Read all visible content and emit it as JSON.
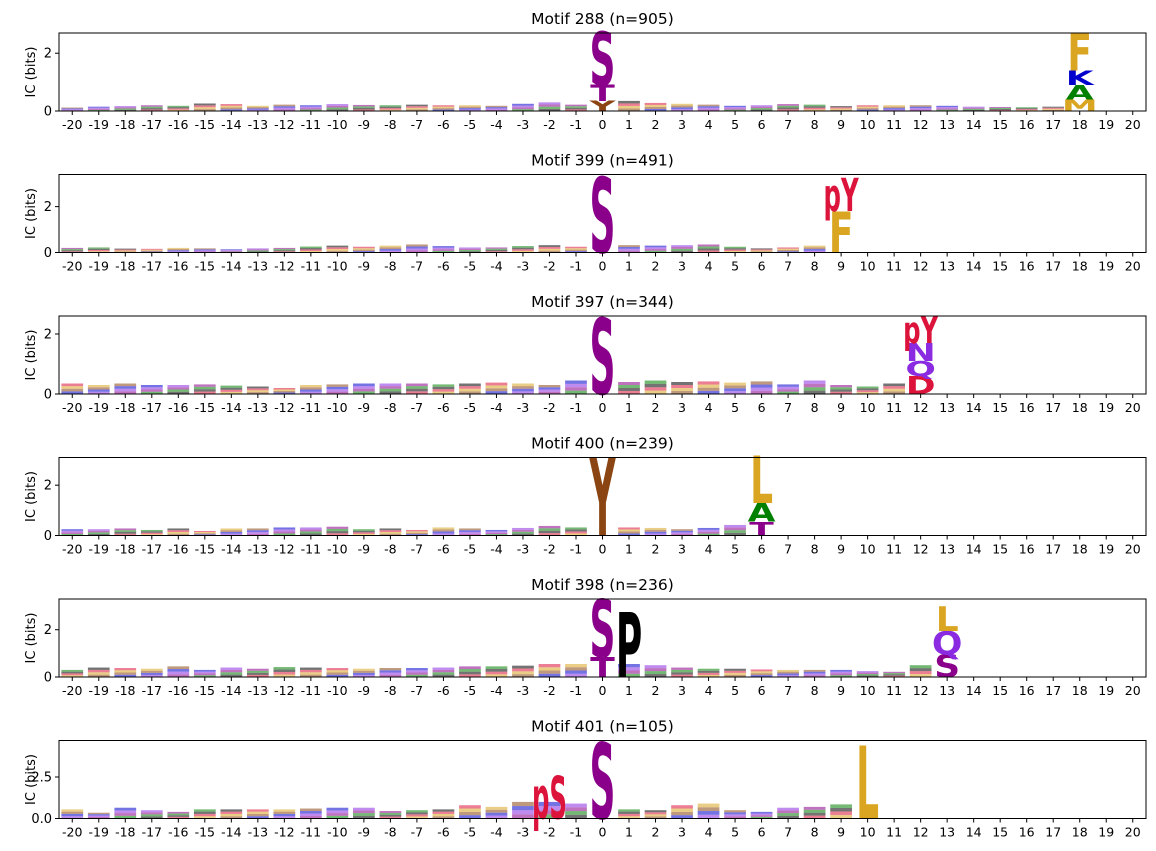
{
  "colors": {
    "S": "#8B008B",
    "T": "#8B008B",
    "pS": "#DC143C",
    "pY": "#DC143C",
    "Y": "#8B4513",
    "F": "#DAA520",
    "L": "#DAA520",
    "M": "#DAA520",
    "A": "#008000",
    "K": "#0000CD",
    "N": "#8A2BE2",
    "Q": "#8A2BE2",
    "D": "#DC143C",
    "P": "#000000"
  },
  "chart_data": [
    {
      "type": "sequence_logo",
      "title": "Motif 288 (n=905)",
      "ylabel": "IC (bits)",
      "xlabel": "",
      "x_ticks": [
        "-20",
        "-19",
        "-18",
        "-17",
        "-16",
        "-15",
        "-14",
        "-13",
        "-12",
        "-11",
        "-10",
        "-9",
        "-8",
        "-7",
        "-6",
        "-5",
        "-4",
        "-3",
        "-2",
        "-1",
        "0",
        "1",
        "2",
        "3",
        "4",
        "5",
        "6",
        "7",
        "8",
        "9",
        "10",
        "11",
        "12",
        "13",
        "14",
        "15",
        "16",
        "17",
        "18",
        "19",
        "20"
      ],
      "y_ticks": [
        "0",
        "2"
      ],
      "ylim": [
        0,
        2.7
      ],
      "background": [
        0.12,
        0.15,
        0.17,
        0.2,
        0.18,
        0.26,
        0.24,
        0.18,
        0.22,
        0.2,
        0.24,
        0.21,
        0.2,
        0.22,
        0.2,
        0.2,
        0.18,
        0.25,
        0.3,
        0.22,
        0,
        0.35,
        0.28,
        0.25,
        0.22,
        0.18,
        0.2,
        0.24,
        0.22,
        0.17,
        0.2,
        0.2,
        0.2,
        0.18,
        0.15,
        0.14,
        0.13,
        0.15,
        0,
        0,
        0
      ],
      "stacks": [
        {
          "pos": 0,
          "letters": [
            {
              "char": "Y",
              "h": 0.35
            },
            {
              "char": "T",
              "h": 0.55
            },
            {
              "char": "S",
              "h": 1.85
            }
          ]
        },
        {
          "pos": 18,
          "letters": [
            {
              "char": "M",
              "h": 0.4
            },
            {
              "char": "A",
              "h": 0.5
            },
            {
              "char": "K",
              "h": 0.5
            },
            {
              "char": "F",
              "h": 1.3
            }
          ]
        }
      ]
    },
    {
      "type": "sequence_logo",
      "title": "Motif 399 (n=491)",
      "ylabel": "IC (bits)",
      "xlabel": "",
      "x_ticks": [
        "-20",
        "-19",
        "-18",
        "-17",
        "-16",
        "-15",
        "-14",
        "-13",
        "-12",
        "-11",
        "-10",
        "-9",
        "-8",
        "-7",
        "-6",
        "-5",
        "-4",
        "-3",
        "-2",
        "-1",
        "0",
        "1",
        "2",
        "3",
        "4",
        "5",
        "6",
        "7",
        "8",
        "9",
        "10",
        "11",
        "12",
        "13",
        "14",
        "15",
        "16",
        "17",
        "18",
        "19",
        "20"
      ],
      "y_ticks": [
        "0",
        "2"
      ],
      "ylim": [
        0,
        3.4
      ],
      "background": [
        0.2,
        0.22,
        0.17,
        0.16,
        0.2,
        0.18,
        0.14,
        0.18,
        0.2,
        0.26,
        0.3,
        0.25,
        0.3,
        0.35,
        0.28,
        0.22,
        0.22,
        0.28,
        0.32,
        0.25,
        0,
        0.32,
        0.3,
        0.32,
        0.35,
        0.25,
        0.18,
        0.22,
        0.3,
        0,
        0,
        0,
        0,
        0,
        0,
        0,
        0,
        0,
        0,
        0,
        0
      ],
      "stacks": [
        {
          "pos": 0,
          "letters": [
            {
              "char": "S",
              "h": 3.3
            }
          ]
        },
        {
          "pos": 9,
          "letters": [
            {
              "char": "F",
              "h": 1.8
            },
            {
              "char": "pY",
              "h": 1.45
            }
          ]
        }
      ]
    },
    {
      "type": "sequence_logo",
      "title": "Motif 397 (n=344)",
      "ylabel": "IC (bits)",
      "xlabel": "",
      "x_ticks": [
        "-20",
        "-19",
        "-18",
        "-17",
        "-16",
        "-15",
        "-14",
        "-13",
        "-12",
        "-11",
        "-10",
        "-9",
        "-8",
        "-7",
        "-6",
        "-5",
        "-4",
        "-3",
        "-2",
        "-1",
        "0",
        "1",
        "2",
        "3",
        "4",
        "5",
        "6",
        "7",
        "8",
        "9",
        "10",
        "11",
        "12",
        "13",
        "14",
        "15",
        "16",
        "17",
        "18",
        "19",
        "20"
      ],
      "y_ticks": [
        "0",
        "2"
      ],
      "ylim": [
        0,
        2.6
      ],
      "background": [
        0.35,
        0.3,
        0.35,
        0.3,
        0.3,
        0.32,
        0.28,
        0.25,
        0.2,
        0.3,
        0.32,
        0.35,
        0.35,
        0.35,
        0.32,
        0.35,
        0.38,
        0.35,
        0.3,
        0.45,
        0,
        0.4,
        0.45,
        0.4,
        0.42,
        0.38,
        0.42,
        0.32,
        0.45,
        0.3,
        0.25,
        0.35,
        0,
        0,
        0,
        0,
        0,
        0,
        0,
        0,
        0
      ],
      "stacks": [
        {
          "pos": 0,
          "letters": [
            {
              "char": "S",
              "h": 2.55
            }
          ]
        },
        {
          "pos": 12,
          "letters": [
            {
              "char": "D",
              "h": 0.6
            },
            {
              "char": "Q",
              "h": 0.5
            },
            {
              "char": "N",
              "h": 0.6
            },
            {
              "char": "pY",
              "h": 0.9
            }
          ]
        }
      ]
    },
    {
      "type": "sequence_logo",
      "title": "Motif 400 (n=239)",
      "ylabel": "IC (bits)",
      "xlabel": "",
      "x_ticks": [
        "-20",
        "-19",
        "-18",
        "-17",
        "-16",
        "-15",
        "-14",
        "-13",
        "-12",
        "-11",
        "-10",
        "-9",
        "-8",
        "-7",
        "-6",
        "-5",
        "-4",
        "-3",
        "-2",
        "-1",
        "0",
        "1",
        "2",
        "3",
        "4",
        "5",
        "6",
        "7",
        "8",
        "9",
        "10",
        "11",
        "12",
        "13",
        "14",
        "15",
        "16",
        "17",
        "18",
        "19",
        "20"
      ],
      "y_ticks": [
        "0",
        "2"
      ],
      "ylim": [
        0,
        3.1
      ],
      "background": [
        0.25,
        0.25,
        0.28,
        0.22,
        0.28,
        0.18,
        0.28,
        0.28,
        0.32,
        0.32,
        0.35,
        0.25,
        0.28,
        0.22,
        0.32,
        0.28,
        0.22,
        0.3,
        0.38,
        0.32,
        0,
        0.32,
        0.3,
        0.25,
        0.3,
        0.42,
        0,
        0,
        0,
        0,
        0,
        0,
        0,
        0,
        0,
        0,
        0,
        0,
        0,
        0,
        0
      ],
      "stacks": [
        {
          "pos": 0,
          "letters": [
            {
              "char": "Y",
              "h": 3.1
            }
          ]
        },
        {
          "pos": 6,
          "letters": [
            {
              "char": "T",
              "h": 0.55
            },
            {
              "char": "A",
              "h": 0.75
            },
            {
              "char": "L",
              "h": 1.9
            }
          ]
        }
      ]
    },
    {
      "type": "sequence_logo",
      "title": "Motif 398 (n=236)",
      "ylabel": "IC (bits)",
      "xlabel": "",
      "x_ticks": [
        "-20",
        "-19",
        "-18",
        "-17",
        "-16",
        "-15",
        "-14",
        "-13",
        "-12",
        "-11",
        "-10",
        "-9",
        "-8",
        "-7",
        "-6",
        "-5",
        "-4",
        "-3",
        "-2",
        "-1",
        "0",
        "1",
        "2",
        "3",
        "4",
        "5",
        "6",
        "7",
        "8",
        "9",
        "10",
        "11",
        "12",
        "13",
        "14",
        "15",
        "16",
        "17",
        "18",
        "19",
        "20"
      ],
      "y_ticks": [
        "0",
        "2"
      ],
      "ylim": [
        0,
        3.3
      ],
      "background": [
        0.3,
        0.4,
        0.38,
        0.35,
        0.45,
        0.3,
        0.4,
        0.35,
        0.42,
        0.4,
        0.38,
        0.35,
        0.38,
        0.38,
        0.4,
        0.45,
        0.45,
        0.48,
        0.55,
        0.55,
        0,
        0.55,
        0.5,
        0.4,
        0.35,
        0.35,
        0.32,
        0.3,
        0.3,
        0.3,
        0.25,
        0.22,
        0.5,
        0,
        0,
        0,
        0,
        0,
        0,
        0,
        0
      ],
      "stacks": [
        {
          "pos": 0,
          "letters": [
            {
              "char": "T",
              "h": 0.85
            },
            {
              "char": "S",
              "h": 2.45
            }
          ]
        },
        {
          "pos": 1,
          "letters": [
            {
              "char": "P",
              "h": 2.75
            }
          ]
        },
        {
          "pos": 13,
          "letters": [
            {
              "char": "S",
              "h": 0.95
            },
            {
              "char": "Q",
              "h": 1.0
            },
            {
              "char": "L",
              "h": 1.05
            }
          ]
        }
      ]
    },
    {
      "type": "sequence_logo",
      "title": "Motif 401 (n=105)",
      "ylabel": "IC (bits)",
      "xlabel": "",
      "x_ticks": [
        "-20",
        "-19",
        "-18",
        "-17",
        "-16",
        "-15",
        "-14",
        "-13",
        "-12",
        "-11",
        "-10",
        "-9",
        "-8",
        "-7",
        "-6",
        "-5",
        "-4",
        "-3",
        "-2",
        "-1",
        "0",
        "1",
        "2",
        "3",
        "4",
        "5",
        "6",
        "7",
        "8",
        "9",
        "10",
        "11",
        "12",
        "13",
        "14",
        "15",
        "16",
        "17",
        "18",
        "19",
        "20"
      ],
      "y_ticks": [
        "0.0",
        "2.5"
      ],
      "ylim": [
        0,
        4.7
      ],
      "background": [
        0.55,
        0.35,
        0.65,
        0.5,
        0.4,
        0.55,
        0.55,
        0.55,
        0.55,
        0.6,
        0.65,
        0.65,
        0.45,
        0.5,
        0.55,
        0.8,
        0.7,
        1.0,
        1.0,
        0.9,
        0,
        0.55,
        0.5,
        0.8,
        0.9,
        0.5,
        0.4,
        0.65,
        0.7,
        0.85,
        0,
        0,
        0,
        0,
        0,
        0,
        0,
        0,
        0,
        0,
        0
      ],
      "stacks": [
        {
          "pos": -2,
          "letters": [
            {
              "char": "pS",
              "h": 2.6
            }
          ]
        },
        {
          "pos": 0,
          "letters": [
            {
              "char": "S",
              "h": 4.6
            }
          ]
        },
        {
          "pos": 10,
          "letters": [
            {
              "char": "L",
              "h": 4.4
            }
          ]
        }
      ]
    }
  ]
}
